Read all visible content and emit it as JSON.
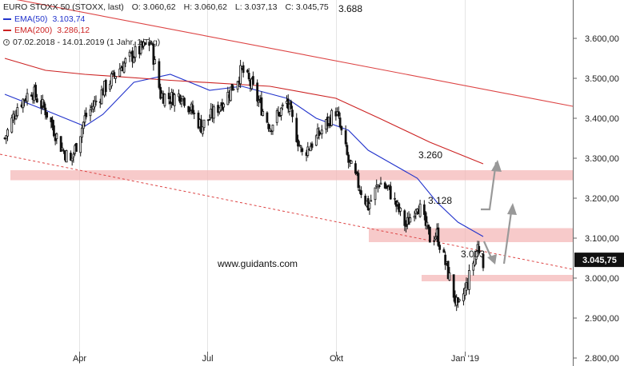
{
  "legend": {
    "instrument": "EURO STOXX 50 (STOXX, last)",
    "open": "O: 3.060,62",
    "high": "H: 3.060,62",
    "low": "L: 3.037,13",
    "close": "C: 3.045,75",
    "ema50_label": "EMA(50)",
    "ema50_value": "3.103,74",
    "ema200_label": "EMA(200)",
    "ema200_value": "3.286,12",
    "period": "07.02.2018 - 14.01.2019 (1 Jahr, 1 Tag)"
  },
  "colors": {
    "candle": "#111111",
    "ema50": "#2233cc",
    "ema200": "#cc2222",
    "trendline": "#dd4444",
    "zone": "#f4b8b8",
    "arrow": "#999999",
    "grid": "#e4e4e4"
  },
  "watermark": "www.guidants.com",
  "chart_data": {
    "type": "candlestick",
    "title": "EURO STOXX 50 (STOXX, last)",
    "y_axis": {
      "ticks": [
        "3.600,00",
        "3.500,00",
        "3.400,00",
        "3.300,00",
        "3.200,00",
        "3.100,00",
        "3.000,00",
        "2.900,00",
        "2.800,00"
      ],
      "ylim": [
        2800,
        3700
      ],
      "last_price_label": "3.045,75"
    },
    "x_axis": {
      "ticks": [
        "Apr",
        "Jul",
        "Okt",
        "Jan '19"
      ]
    },
    "grid": "vertical",
    "annotations": [
      "3.688",
      "3.260",
      "3.128",
      "3.003"
    ],
    "zones": [
      {
        "from": 3245,
        "to": 3270
      },
      {
        "from": 3090,
        "to": 3125
      },
      {
        "from": 2992,
        "to": 3008
      }
    ],
    "ohlc_anchor_closes": [
      [
        "2018-02-07",
        3350
      ],
      [
        "2018-02-16",
        3430
      ],
      [
        "2018-02-26",
        3470
      ],
      [
        "2018-03-08",
        3420
      ],
      [
        "2018-03-19",
        3330
      ],
      [
        "2018-03-26",
        3290
      ],
      [
        "2018-04-05",
        3400
      ],
      [
        "2018-04-18",
        3470
      ],
      [
        "2018-05-01",
        3530
      ],
      [
        "2018-05-10",
        3560
      ],
      [
        "2018-05-22",
        3590
      ],
      [
        "2018-05-29",
        3460
      ],
      [
        "2018-06-05",
        3450
      ],
      [
        "2018-06-13",
        3460
      ],
      [
        "2018-06-27",
        3380
      ],
      [
        "2018-07-03",
        3400
      ],
      [
        "2018-07-16",
        3460
      ],
      [
        "2018-07-26",
        3520
      ],
      [
        "2018-08-02",
        3480
      ],
      [
        "2018-08-15",
        3380
      ],
      [
        "2018-08-27",
        3440
      ],
      [
        "2018-09-07",
        3310
      ],
      [
        "2018-09-17",
        3350
      ],
      [
        "2018-10-01",
        3420
      ],
      [
        "2018-10-10",
        3290
      ],
      [
        "2018-10-24",
        3180
      ],
      [
        "2018-11-01",
        3240
      ],
      [
        "2018-11-08",
        3220
      ],
      [
        "2018-11-20",
        3130
      ],
      [
        "2018-11-28",
        3190
      ],
      [
        "2018-12-07",
        3100
      ],
      [
        "2018-12-12",
        3110
      ],
      [
        "2018-12-21",
        3000
      ],
      [
        "2018-12-27",
        2920
      ],
      [
        "2019-01-03",
        2990
      ],
      [
        "2019-01-10",
        3080
      ],
      [
        "2019-01-14",
        3045
      ]
    ],
    "series": [
      {
        "name": "EMA(50)",
        "values": [
          [
            "2018-02-07",
            3460
          ],
          [
            "2018-03-08",
            3420
          ],
          [
            "2018-04-05",
            3380
          ],
          [
            "2018-04-18",
            3410
          ],
          [
            "2018-05-10",
            3490
          ],
          [
            "2018-06-05",
            3510
          ],
          [
            "2018-07-03",
            3470
          ],
          [
            "2018-07-26",
            3480
          ],
          [
            "2018-08-27",
            3450
          ],
          [
            "2018-09-17",
            3400
          ],
          [
            "2018-10-10",
            3370
          ],
          [
            "2018-10-24",
            3320
          ],
          [
            "2018-11-08",
            3290
          ],
          [
            "2018-11-28",
            3250
          ],
          [
            "2018-12-12",
            3190
          ],
          [
            "2018-12-27",
            3140
          ],
          [
            "2019-01-14",
            3104
          ]
        ]
      },
      {
        "name": "EMA(200)",
        "values": [
          [
            "2018-02-07",
            3550
          ],
          [
            "2018-03-08",
            3520
          ],
          [
            "2018-04-05",
            3510
          ],
          [
            "2018-06-05",
            3495
          ],
          [
            "2018-08-15",
            3480
          ],
          [
            "2018-10-01",
            3450
          ],
          [
            "2018-11-01",
            3400
          ],
          [
            "2018-12-07",
            3340
          ],
          [
            "2019-01-14",
            3286
          ]
        ]
      }
    ]
  }
}
